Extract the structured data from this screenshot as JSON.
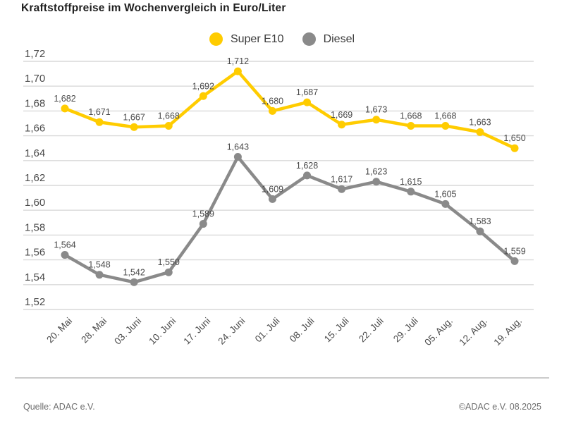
{
  "title": "Kraftstoffpreise im Wochenvergleich in Euro/Liter",
  "legend": [
    {
      "label": "Super E10",
      "color": "#FFCC00"
    },
    {
      "label": "Diesel",
      "color": "#8A8A8A"
    }
  ],
  "footer": {
    "source": "Quelle: ADAC e.V.",
    "copyright": "©ADAC e.V. 08.2025"
  },
  "colors": {
    "gridline": "#d9d9d9",
    "axis_text": "#4a4a4a",
    "value_label": "#4a4a4a"
  },
  "chart_data": {
    "type": "line",
    "title": "Kraftstoffpreise im Wochenvergleich in Euro/Liter",
    "categories": [
      "20. Mai",
      "28. Mai",
      "03. Juni",
      "10. Juni",
      "17. Juni",
      "24. Juni",
      "01. Juli",
      "08. Juli",
      "15. Juli",
      "22. Juli",
      "29. Juli",
      "05. Aug.",
      "12. Aug.",
      "19. Aug."
    ],
    "series": [
      {
        "name": "Super E10",
        "color": "#FFCC00",
        "values": [
          1.682,
          1.671,
          1.667,
          1.668,
          1.692,
          1.712,
          1.68,
          1.687,
          1.669,
          1.673,
          1.668,
          1.668,
          1.663,
          1.65
        ]
      },
      {
        "name": "Diesel",
        "color": "#8A8A8A",
        "values": [
          1.564,
          1.548,
          1.542,
          1.55,
          1.589,
          1.643,
          1.609,
          1.628,
          1.617,
          1.623,
          1.615,
          1.605,
          1.583,
          1.559
        ]
      }
    ],
    "xlabel": "",
    "ylabel": "",
    "ylim": [
      1.52,
      1.72
    ],
    "y_ticks": [
      1.52,
      1.54,
      1.56,
      1.58,
      1.6,
      1.62,
      1.64,
      1.66,
      1.68,
      1.7,
      1.72
    ],
    "grid": "horizontal",
    "legend_position": "top-center",
    "value_labels": true,
    "decimal_separator": ","
  }
}
